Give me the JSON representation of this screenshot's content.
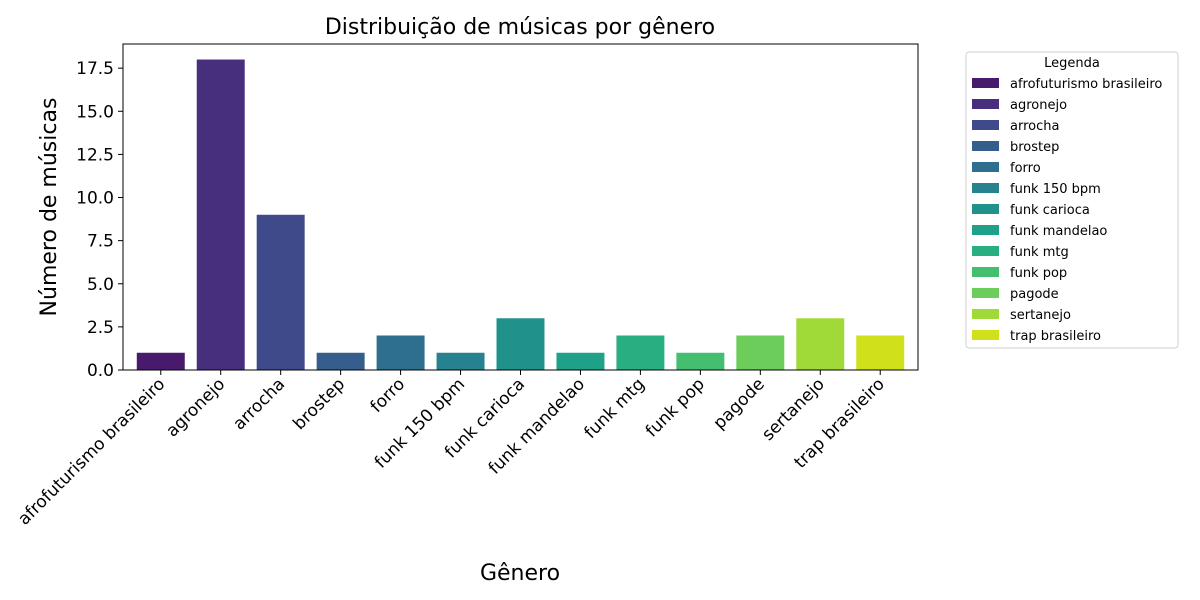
{
  "chart_data": {
    "type": "bar",
    "title": "Distribuição de músicas por gênero",
    "xlabel": "Gênero",
    "ylabel": "Número de músicas",
    "categories": [
      "afrofuturismo brasileiro",
      "agronejo",
      "arrocha",
      "brostep",
      "forro",
      "funk 150 bpm",
      "funk carioca",
      "funk mandelao",
      "funk mtg",
      "funk pop",
      "pagode",
      "sertanejo",
      "trap brasileiro"
    ],
    "values": [
      1,
      18,
      9,
      1,
      2,
      1,
      3,
      1,
      2,
      1,
      2,
      3,
      2
    ],
    "colors": [
      "#481a6c",
      "#472f7d",
      "#3e4a89",
      "#355e8d",
      "#2e6e8e",
      "#26828e",
      "#21918c",
      "#1fa088",
      "#28ae80",
      "#44bf70",
      "#6ccd5a",
      "#a0da39",
      "#d0e11c"
    ],
    "ylim": [
      0,
      18.9
    ],
    "yticks": [
      0.0,
      2.5,
      5.0,
      7.5,
      10.0,
      12.5,
      15.0,
      17.5
    ],
    "ytick_labels": [
      "0.0",
      "2.5",
      "5.0",
      "7.5",
      "10.0",
      "12.5",
      "15.0",
      "17.5"
    ],
    "grid": false,
    "legend": {
      "title": "Legenda",
      "placement": "outside-top-right"
    }
  }
}
